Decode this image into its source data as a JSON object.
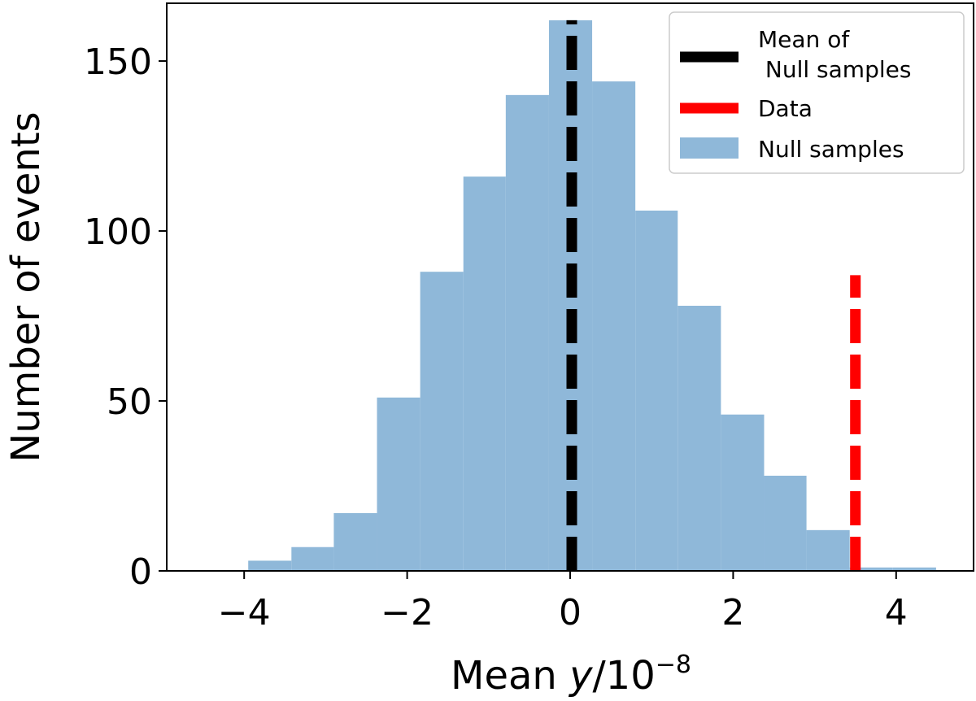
{
  "chart_data": {
    "type": "bar",
    "subtype": "histogram",
    "title": "",
    "xlabel": "Mean y/10⁻⁸",
    "xlabel_parts": {
      "prefix": "Mean ",
      "variable": "y",
      "suffix": "/10",
      "exponent": "−8"
    },
    "ylabel": "Number of events",
    "xlim": [
      -4.95,
      4.95
    ],
    "ylim": [
      0,
      167
    ],
    "xticks": [
      -4,
      -2,
      0,
      2,
      4
    ],
    "xtick_labels": [
      "−4",
      "−2",
      "0",
      "2",
      "4"
    ],
    "yticks": [
      0,
      50,
      100,
      150
    ],
    "ytick_labels": [
      "0",
      "50",
      "100",
      "150"
    ],
    "bins": [
      [
        -3.95,
        -3.42,
        3
      ],
      [
        -3.42,
        -2.9,
        7
      ],
      [
        -2.9,
        -2.37,
        17
      ],
      [
        -2.37,
        -1.84,
        51
      ],
      [
        -1.84,
        -1.31,
        88
      ],
      [
        -1.31,
        -0.79,
        116
      ],
      [
        -0.79,
        -0.26,
        140
      ],
      [
        -0.26,
        0.27,
        162
      ],
      [
        0.27,
        0.8,
        144
      ],
      [
        0.8,
        1.32,
        106
      ],
      [
        1.32,
        1.85,
        78
      ],
      [
        1.85,
        2.38,
        46
      ],
      [
        2.38,
        2.9,
        28
      ],
      [
        2.9,
        3.43,
        12
      ],
      [
        3.43,
        3.96,
        1
      ],
      [
        3.96,
        4.49,
        1
      ]
    ],
    "series": [
      {
        "name": "Null samples",
        "kind": "histogram",
        "color": "#8fb8d9"
      },
      {
        "name": "Mean of\n Null samples",
        "kind": "vline",
        "x": 0.02,
        "y_range": [
          0,
          162
        ],
        "color": "#000000",
        "style": "dashed"
      },
      {
        "name": "Data",
        "kind": "vline",
        "x": 3.5,
        "y_range": [
          0,
          87
        ],
        "color": "#ff0000",
        "style": "dashed"
      }
    ],
    "legend": {
      "position": "top-right",
      "entries": [
        {
          "lines": [
            "Mean of",
            " Null samples"
          ],
          "color": "#000000",
          "style": "line"
        },
        {
          "lines": [
            "Data"
          ],
          "color": "#ff0000",
          "style": "line"
        },
        {
          "lines": [
            "Null samples"
          ],
          "color": "#8fb8d9",
          "style": "patch"
        }
      ]
    },
    "grid": false
  }
}
